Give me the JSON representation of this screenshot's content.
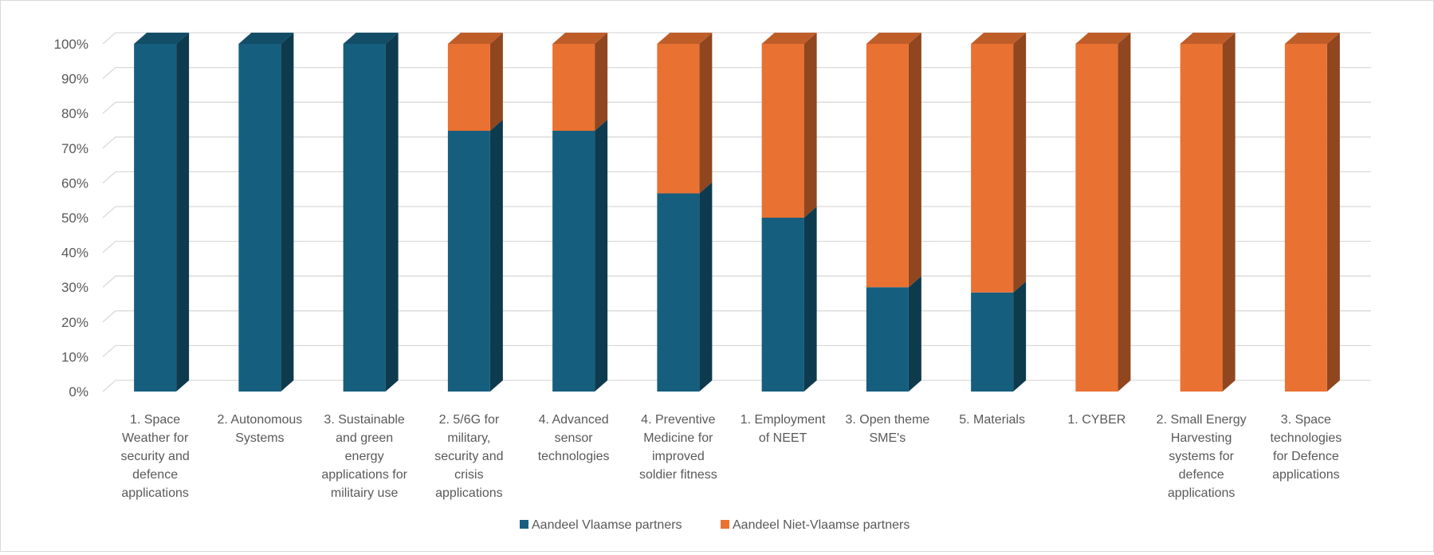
{
  "chart_data": {
    "type": "bar",
    "stacked": "percent",
    "style": "3d-column",
    "title": "",
    "xlabel": "",
    "ylabel": "",
    "ylim": [
      0,
      100
    ],
    "y_ticks": [
      "0%",
      "10%",
      "20%",
      "30%",
      "40%",
      "50%",
      "60%",
      "70%",
      "80%",
      "90%",
      "100%"
    ],
    "grid": true,
    "legend_position": "bottom",
    "categories": [
      [
        "1. Space",
        "Weather for",
        "security and",
        "defence",
        "applications"
      ],
      [
        "2. Autonomous",
        "Systems"
      ],
      [
        "3. Sustainable",
        "and green",
        "energy",
        "applications for",
        "militairy use"
      ],
      [
        "2. 5/6G for",
        "military,",
        "security and",
        "crisis",
        "applications"
      ],
      [
        "4. Advanced",
        "sensor",
        "technologies"
      ],
      [
        "4. Preventive",
        "Medicine for",
        "improved",
        "soldier fitness"
      ],
      [
        "1. Employment",
        "of NEET"
      ],
      [
        "3. Open theme",
        "SME's"
      ],
      [
        "5. Materials"
      ],
      [
        "1. CYBER"
      ],
      [
        "2. Small Energy",
        "Harvesting",
        "systems for",
        "defence",
        "applications"
      ],
      [
        "3. Space",
        "technologies",
        "for Defence",
        "applications"
      ]
    ],
    "series": [
      {
        "name": "Aandeel Vlaamse partners",
        "color": "#165e7e",
        "values": [
          100,
          100,
          100,
          75,
          75,
          57,
          50,
          30,
          28.5,
          0,
          0,
          0
        ]
      },
      {
        "name": "Aandeel Niet-Vlaamse partners",
        "color": "#e97132",
        "values": [
          0,
          0,
          0,
          25,
          25,
          43,
          50,
          70,
          71.5,
          100,
          100,
          100
        ]
      }
    ]
  }
}
